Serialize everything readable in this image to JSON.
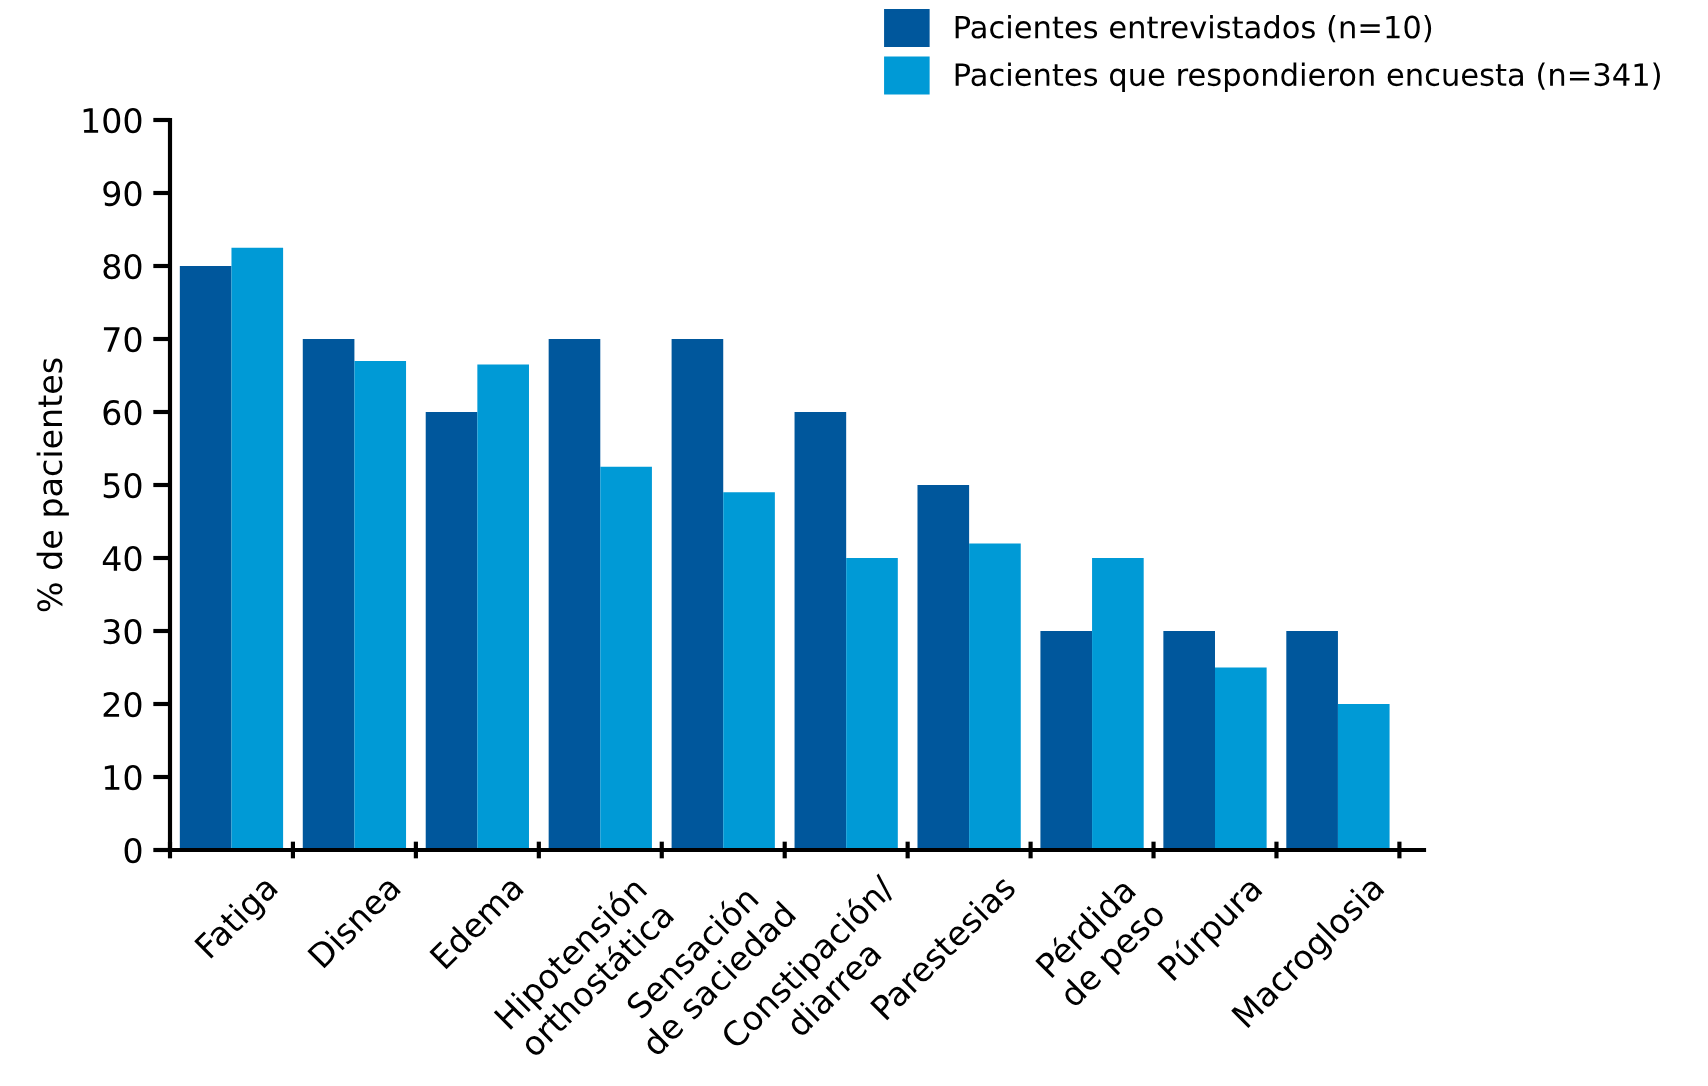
{
  "chart_data": {
    "type": "bar",
    "ylabel": "% de pacientes",
    "categories": [
      "Fatiga",
      "Disnea",
      "Edema",
      "Hipotensión\northostática",
      "Sensación\nde saciedad",
      "Constipación/\ndiarrea",
      "Parestesias",
      "Pérdida\nde peso",
      "Púrpura",
      "Macroglosia"
    ],
    "series": [
      {
        "name": "Pacientes entrevistados (n=10)",
        "color": "#00579c",
        "values": [
          80,
          70,
          60,
          70,
          70,
          60,
          50,
          30,
          30,
          30
        ]
      },
      {
        "name": "Pacientes que respondieron encuesta (n=341)",
        "color": "#009ad6",
        "values": [
          82.5,
          67,
          66.5,
          52.5,
          49,
          40,
          42,
          40,
          25,
          20
        ]
      }
    ],
    "ylim": [
      0,
      100
    ],
    "yticks": [
      0,
      10,
      20,
      30,
      40,
      50,
      60,
      70,
      80,
      90,
      100
    ],
    "grid": false,
    "legend": "top right"
  }
}
